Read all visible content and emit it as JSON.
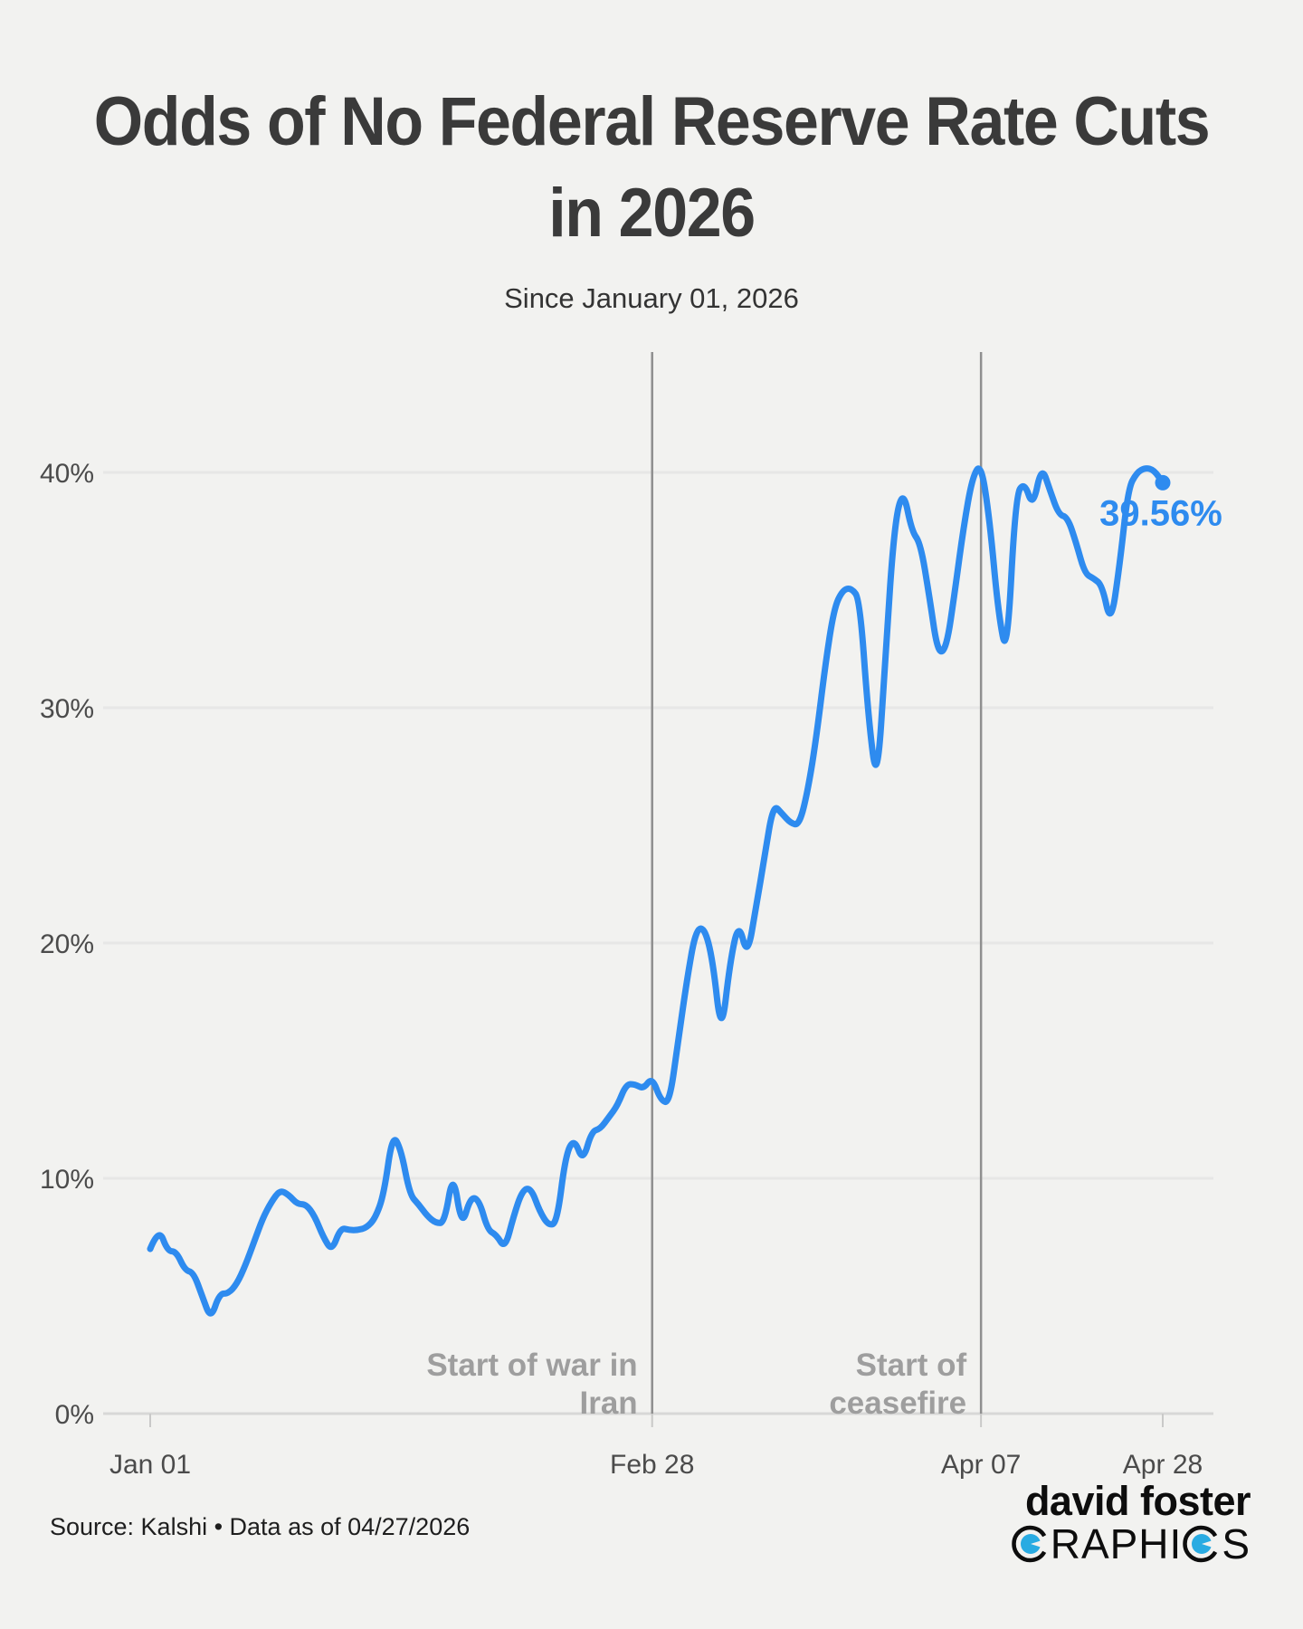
{
  "header": {
    "title_line1": "Odds of No Federal Reserve Rate Cuts",
    "title_line2": "in 2026",
    "subtitle": "Since January 01, 2026"
  },
  "footer": {
    "source": "Source: Kalshi • Data as of 04/27/2026",
    "logo_line1": "david foster",
    "logo_graphics_mid": "RAPHI",
    "logo_graphics_end": "S"
  },
  "chart_data": {
    "type": "line",
    "title": "Odds of No Federal Reserve Rate Cuts in 2026",
    "subtitle": "Since January 01, 2026",
    "series_name": "Odds of no Fed rate cuts in 2026",
    "x_unit": "days since Jan 01, 2026 (one value per day)",
    "values": [
      7.0,
      7.9,
      6.9,
      6.9,
      6.1,
      6.0,
      5.0,
      4.0,
      5.1,
      5.1,
      5.5,
      6.3,
      7.3,
      8.3,
      9.0,
      9.5,
      9.3,
      8.9,
      8.9,
      8.4,
      7.5,
      6.9,
      7.9,
      7.8,
      7.8,
      7.9,
      8.3,
      9.3,
      11.9,
      11.2,
      9.3,
      8.9,
      8.4,
      8.1,
      8.1,
      10.3,
      7.9,
      9.2,
      9.1,
      7.8,
      7.6,
      7.0,
      8.4,
      9.5,
      9.6,
      8.6,
      8.0,
      8.1,
      11.0,
      11.7,
      10.7,
      12.0,
      12.1,
      12.6,
      13.1,
      14.0,
      14.0,
      13.8,
      14.3,
      13.3,
      13.2,
      15.8,
      18.4,
      20.5,
      20.7,
      19.3,
      16.0,
      19.2,
      20.9,
      19.4,
      21.5,
      23.7,
      25.9,
      25.5,
      25.1,
      25.0,
      26.5,
      28.8,
      31.8,
      34.2,
      35.0,
      35.1,
      34.6,
      29.5,
      26.6,
      32.5,
      37.8,
      39.3,
      37.5,
      37.0,
      34.8,
      32.3,
      32.5,
      35.0,
      37.7,
      39.8,
      40.4,
      38.0,
      34.0,
      32.1,
      39.0,
      39.6,
      38.5,
      40.3,
      39.2,
      38.2,
      38.1,
      37.0,
      35.7,
      35.5,
      35.2,
      33.5,
      36.0,
      39.3,
      40.0,
      40.2,
      40.1,
      39.56
    ],
    "last_value": 39.56,
    "last_value_label": "39.56%",
    "ylim": [
      0,
      43
    ],
    "y_ticks": [
      "0%",
      "10%",
      "20%",
      "30%",
      "40%"
    ],
    "y_tick_values": [
      0,
      10,
      20,
      30,
      40
    ],
    "x_ticks": [
      {
        "label": "Jan 01",
        "day": 0
      },
      {
        "label": "Feb 28",
        "day": 58
      },
      {
        "label": "Apr 07",
        "day": 96
      },
      {
        "label": "Apr 28",
        "day": 117
      }
    ],
    "annotations": [
      {
        "lines": [
          "Start of war in",
          "Iran"
        ],
        "day": 58
      },
      {
        "lines": [
          "Start of",
          "ceasefire"
        ],
        "day": 96
      }
    ],
    "grid": "horizontal",
    "legend": "none",
    "colors": {
      "line": "#2E8BEF",
      "annotation": "#9e9e9e",
      "event_line": "#8f8f8f",
      "grid": "#e7e7e6",
      "axis": "#d8d8d7",
      "tick_mark": "#c9c9c8",
      "logo_blue": "#29ABE2",
      "background": "#f2f2f0"
    }
  }
}
